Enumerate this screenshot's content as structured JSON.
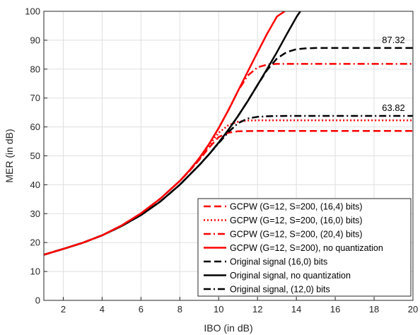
{
  "chart_data": {
    "type": "line",
    "xlabel": "IBO (in dB)",
    "ylabel": "MER (in dB)",
    "xlim": [
      1,
      20
    ],
    "ylim": [
      0,
      100
    ],
    "xticks": [
      2,
      4,
      6,
      8,
      10,
      12,
      14,
      16,
      18,
      20
    ],
    "yticks": [
      0,
      10,
      20,
      30,
      40,
      50,
      60,
      70,
      80,
      90,
      100
    ],
    "grid": true,
    "legend_position": "bottom-right",
    "annotations": [
      {
        "text": "87.32",
        "x": 19.0,
        "y": 87.32
      },
      {
        "text": "63.82",
        "x": 19.0,
        "y": 63.82
      }
    ],
    "series": [
      {
        "name": "GCPW (G=12, S=200, (16,4) bits)",
        "color": "#ff0000",
        "dash": "dashed",
        "x": [
          1,
          2,
          3,
          4,
          5,
          6,
          7,
          8,
          8.5,
          9,
          9.5,
          10,
          10.5,
          11,
          12,
          14,
          16,
          18,
          20
        ],
        "y": [
          15.8,
          17.8,
          19.9,
          22.5,
          25.9,
          30.1,
          35.2,
          41.3,
          44.8,
          48.6,
          52.8,
          56.5,
          58.0,
          58.5,
          58.6,
          58.6,
          58.6,
          58.6,
          58.6
        ]
      },
      {
        "name": "GCPW (G=12, S=200, (16,0) bits)",
        "color": "#ff0000",
        "dash": "dotted",
        "x": [
          1,
          2,
          3,
          4,
          5,
          6,
          7,
          8,
          8.5,
          9,
          9.5,
          10,
          10.5,
          11,
          11.5,
          12,
          14,
          16,
          18,
          20
        ],
        "y": [
          15.8,
          17.8,
          19.9,
          22.5,
          25.9,
          30.1,
          35.2,
          41.3,
          44.8,
          48.8,
          53.5,
          58.0,
          60.6,
          61.8,
          62.2,
          62.3,
          62.3,
          62.3,
          62.3,
          62.3
        ]
      },
      {
        "name": "GCPW (G=12, S=200, (20,4) bits)",
        "color": "#ff0000",
        "dash": "dashdot",
        "x": [
          1,
          2,
          3,
          4,
          5,
          6,
          7,
          8,
          8.5,
          9,
          9.5,
          10,
          10.5,
          11,
          11.5,
          12,
          12.5,
          13,
          14,
          16,
          18,
          20
        ],
        "y": [
          15.8,
          17.8,
          19.9,
          22.5,
          25.9,
          30.1,
          35.2,
          41.3,
          45.0,
          49.2,
          54.0,
          59.6,
          65.8,
          72.5,
          77.8,
          80.6,
          81.6,
          81.8,
          81.8,
          81.8,
          81.8,
          81.8
        ]
      },
      {
        "name": "GCPW (G=12, S=200), no quantization",
        "color": "#ff0000",
        "dash": "solid",
        "x": [
          1,
          2,
          3,
          4,
          5,
          6,
          7,
          8,
          8.5,
          9,
          9.5,
          10,
          10.5,
          11,
          11.5,
          12,
          12.5,
          13,
          13.4
        ],
        "y": [
          15.8,
          17.8,
          19.9,
          22.5,
          25.9,
          30.1,
          35.2,
          41.3,
          45.0,
          49.2,
          54.0,
          59.6,
          65.8,
          72.5,
          79.2,
          85.8,
          92.3,
          98.2,
          100
        ]
      },
      {
        "name": "Original signal (16,0) bits",
        "color": "#000000",
        "dash": "dashed",
        "x": [
          1,
          2,
          3,
          4,
          5,
          6,
          7,
          8,
          9,
          9.5,
          10,
          10.5,
          11,
          11.5,
          12,
          12.5,
          13,
          13.5,
          14,
          14.5,
          15,
          16,
          18,
          20
        ],
        "y": [
          15.8,
          17.8,
          19.9,
          22.5,
          25.7,
          29.5,
          34.2,
          40.0,
          46.8,
          50.5,
          54.6,
          59.0,
          63.8,
          69.0,
          74.5,
          79.7,
          83.7,
          85.9,
          86.9,
          87.2,
          87.3,
          87.32,
          87.32,
          87.32
        ]
      },
      {
        "name": "Original signal, no quantization",
        "color": "#000000",
        "dash": "solid",
        "x": [
          1,
          2,
          3,
          4,
          5,
          6,
          7,
          8,
          9,
          9.5,
          10,
          10.5,
          11,
          11.5,
          12,
          12.5,
          13,
          13.5,
          14,
          14.2
        ],
        "y": [
          15.8,
          17.8,
          19.9,
          22.5,
          25.7,
          29.5,
          34.2,
          40.0,
          46.8,
          50.5,
          54.6,
          59.0,
          63.8,
          69.0,
          74.5,
          80.1,
          85.9,
          92.0,
          98.0,
          100
        ]
      },
      {
        "name": "Original signal, (12,0) bits",
        "color": "#000000",
        "dash": "dashdot",
        "x": [
          1,
          2,
          3,
          4,
          5,
          6,
          7,
          8,
          9,
          9.5,
          10,
          10.5,
          11,
          11.5,
          12,
          12.5,
          13,
          14,
          16,
          18,
          20
        ],
        "y": [
          15.8,
          17.8,
          19.9,
          22.5,
          25.7,
          29.5,
          34.2,
          40.0,
          46.8,
          50.5,
          54.4,
          58.2,
          61.3,
          62.9,
          63.5,
          63.7,
          63.8,
          63.82,
          63.82,
          63.82,
          63.82
        ]
      }
    ]
  }
}
